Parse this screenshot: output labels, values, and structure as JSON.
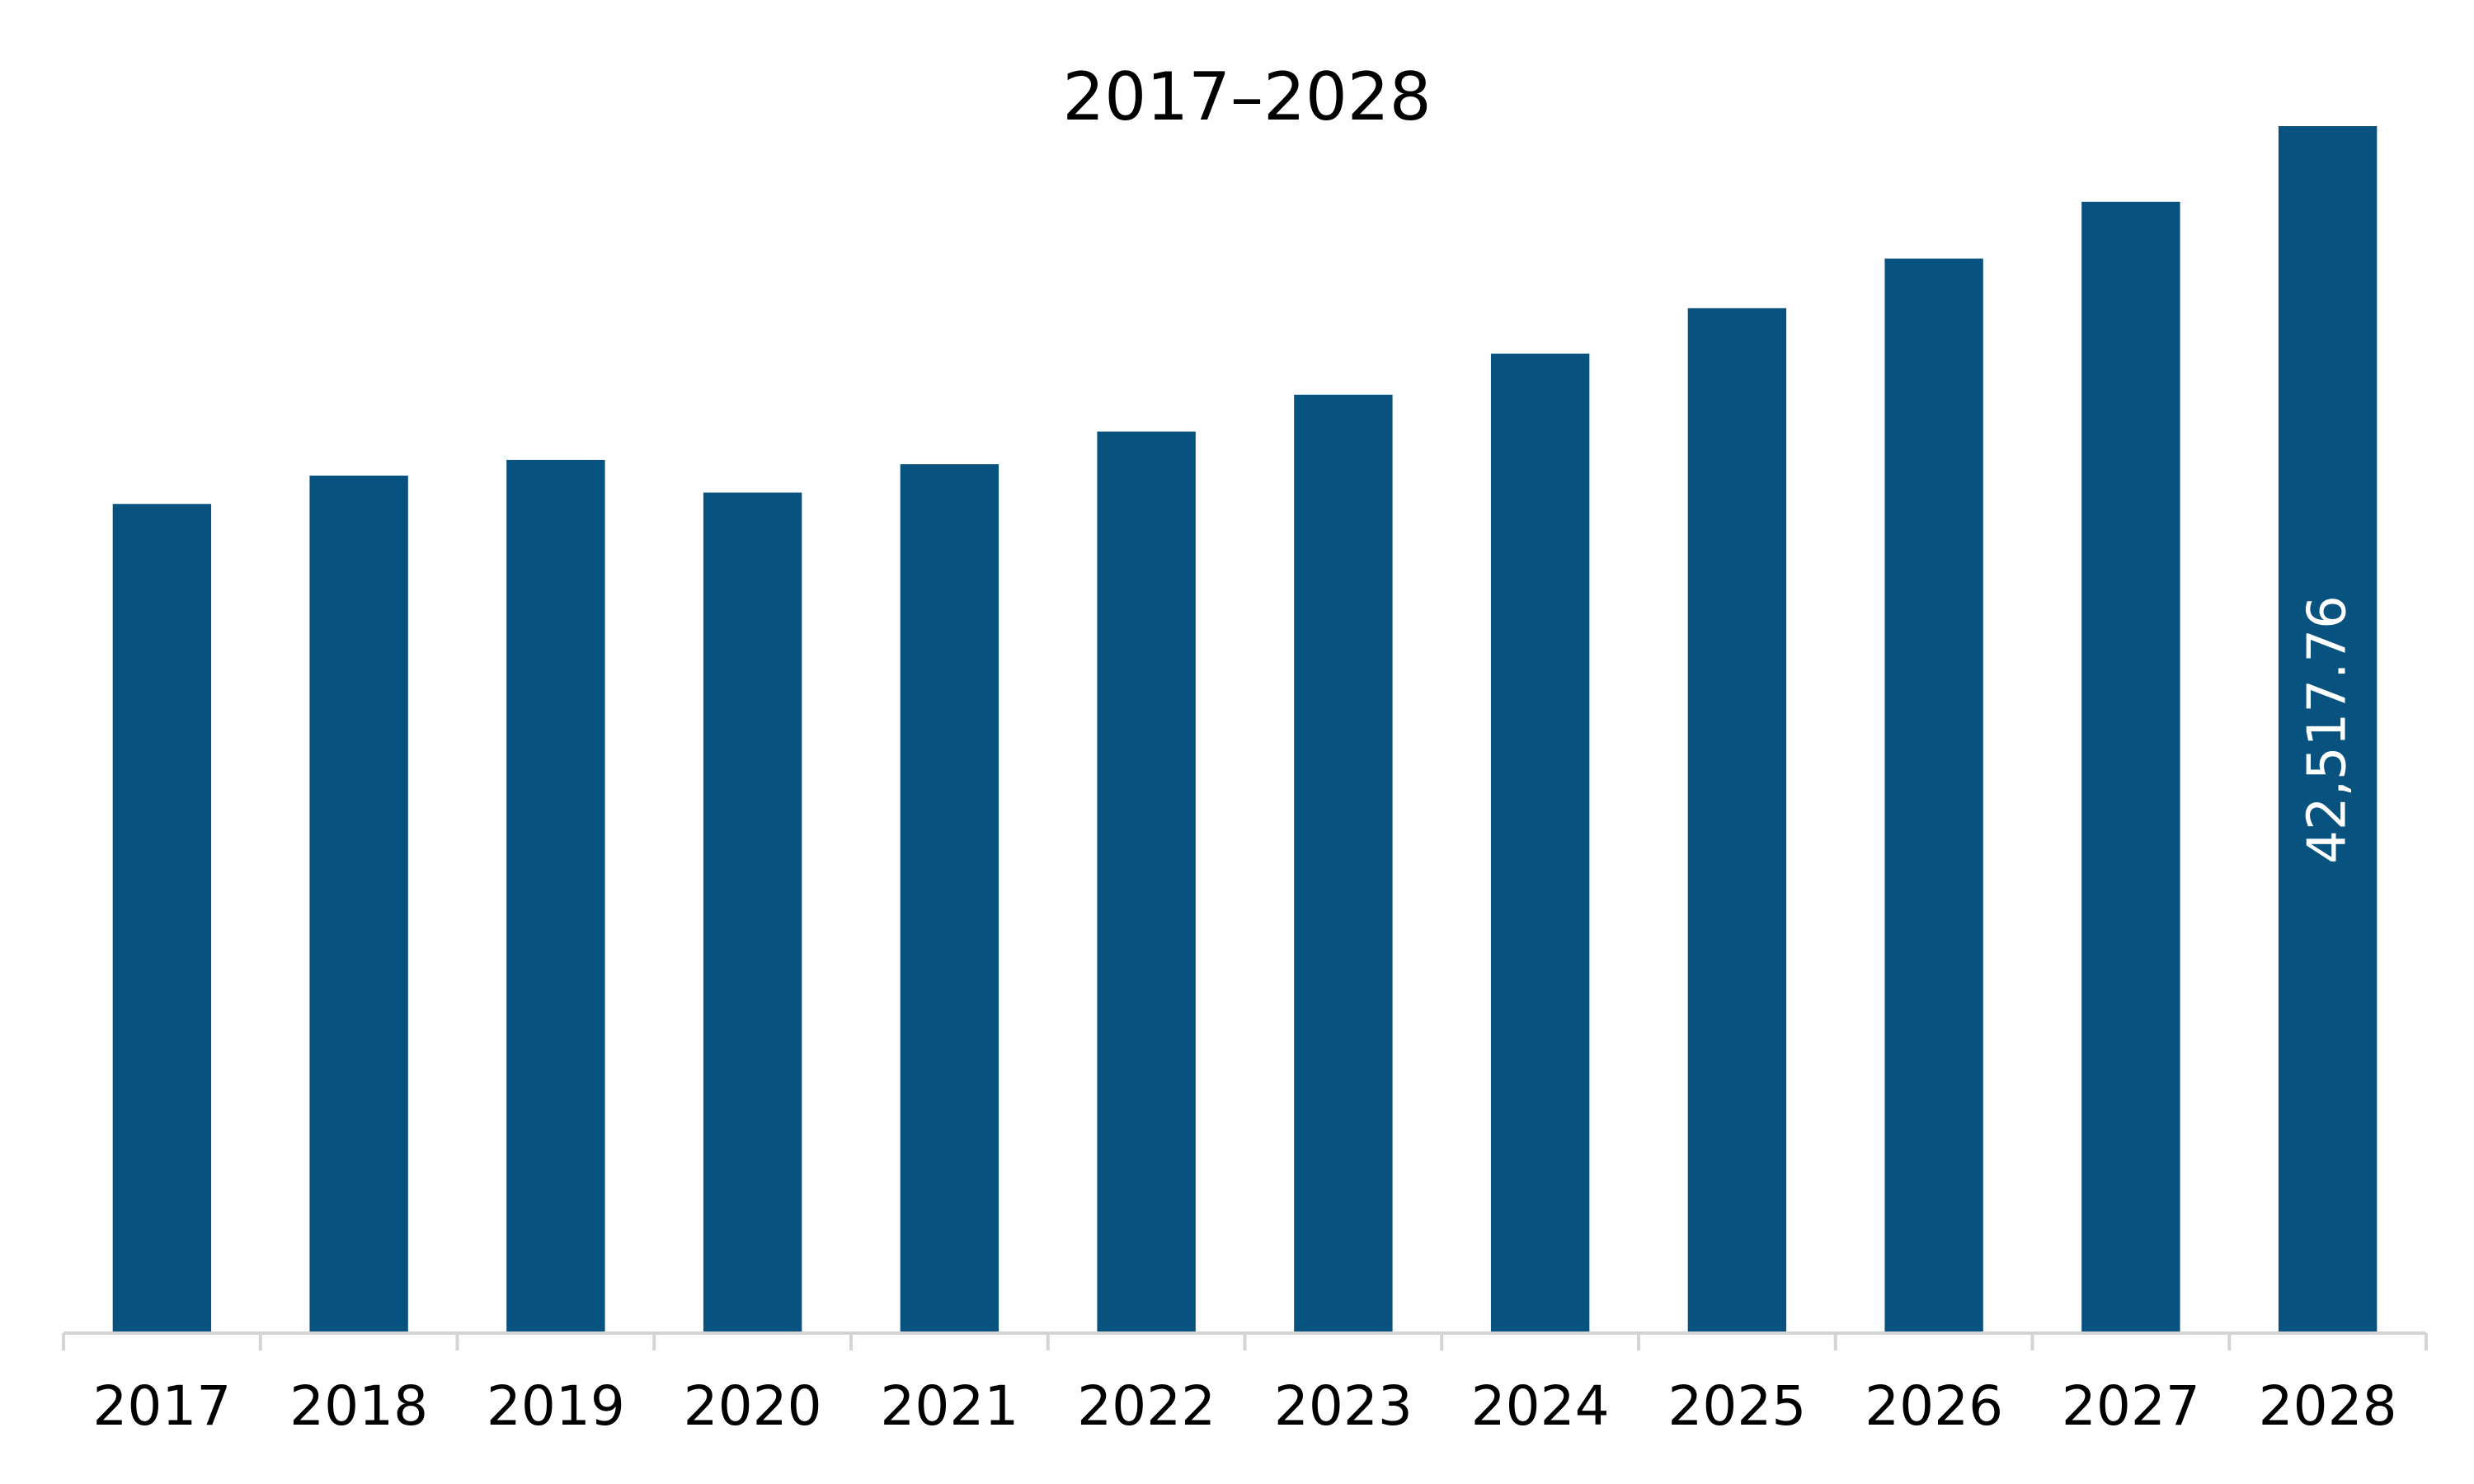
{
  "chart_data": {
    "type": "bar",
    "title": "2017–2028",
    "xlabel": "",
    "ylabel": "",
    "categories": [
      "2017",
      "2018",
      "2019",
      "2020",
      "2021",
      "2022",
      "2023",
      "2024",
      "2025",
      "2026",
      "2027",
      "2028"
    ],
    "values": [
      29200,
      30200,
      30750,
      29600,
      30600,
      31750,
      33050,
      34500,
      36100,
      37850,
      39850,
      42517.76
    ],
    "data_labels": [
      "",
      "",
      "",
      "",
      "",
      "",
      "",
      "",
      "",
      "",
      "",
      "42,517.76"
    ],
    "ylim": [
      0,
      42517.76
    ],
    "grid": false,
    "legend": "none",
    "colors": {
      "bar": "#08527f",
      "axis": "#d4d4d4",
      "value_label": "#ffffff",
      "text": "#000000"
    }
  }
}
